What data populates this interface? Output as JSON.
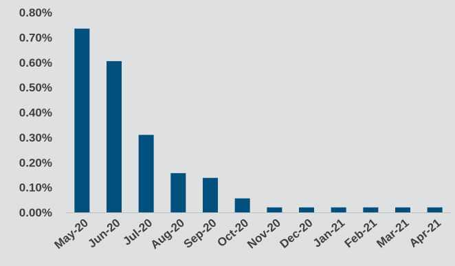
{
  "chart_data": {
    "type": "bar",
    "categories": [
      "May-20",
      "Jun-20",
      "Jul-20",
      "Aug-20",
      "Sep-20",
      "Oct-20",
      "Nov-20",
      "Dec-20",
      "Jan-21",
      "Feb-21",
      "Mar-21",
      "Apr-21"
    ],
    "values": [
      0.735,
      0.605,
      0.31,
      0.157,
      0.138,
      0.056,
      0.02,
      0.02,
      0.02,
      0.02,
      0.02,
      0.02
    ],
    "value_unit": "percent",
    "ylim": [
      0,
      0.8
    ],
    "yticks": [
      "0.00%",
      "0.10%",
      "0.20%",
      "0.30%",
      "0.40%",
      "0.50%",
      "0.60%",
      "0.70%",
      "0.80%"
    ],
    "title": "",
    "xlabel": "",
    "ylabel": "",
    "grid": false,
    "legend": "none",
    "bar_color": "#02507e",
    "text_color": "#404040",
    "background": "#dfe0e2"
  }
}
